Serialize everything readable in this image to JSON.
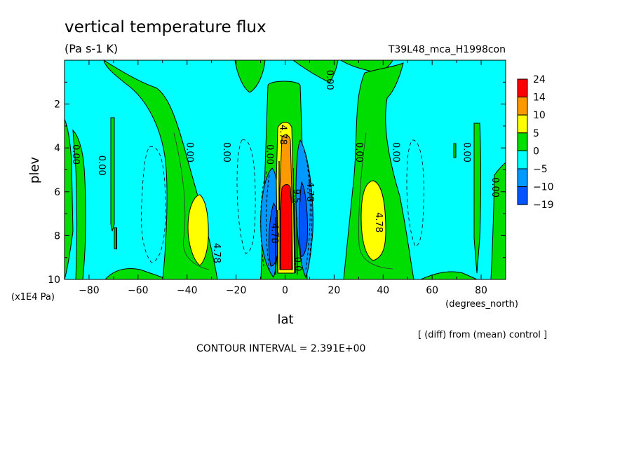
{
  "chart_data": {
    "type": "heatmap",
    "title": "vertical temperature flux",
    "units": "(Pa s-1 K)",
    "experiment": "T39L48_mca_H1998con",
    "xlabel": "lat",
    "xunits": "(degrees_north)",
    "ylabel": "plev",
    "yunits": "(x1E4 Pa)",
    "xlim": [
      -90,
      90
    ],
    "ylim": [
      10,
      0
    ],
    "xticks": [
      -80,
      -60,
      -40,
      -20,
      0,
      20,
      40,
      60,
      80
    ],
    "xtick_labels": [
      "−80",
      "−60",
      "−40",
      "−20",
      "0",
      "20",
      "40",
      "60",
      "80"
    ],
    "yticks": [
      2,
      4,
      6,
      8,
      10
    ],
    "ytick_labels": [
      "2",
      "4",
      "6",
      "8",
      "10"
    ],
    "diff_note": "[ (diff) from (mean) control ]",
    "contour_interval": "CONTOUR INTERVAL = 2.391E+00",
    "colorbar": {
      "levels": [
        "24",
        "14",
        "10",
        "5",
        "0",
        "−5",
        "−10",
        "−19"
      ],
      "colors": [
        "#ff0000",
        "#ff9900",
        "#ffff00",
        "#00dd00",
        "#00ffff",
        "#0099ff",
        "#0055ff"
      ]
    },
    "contour_labels": [
      {
        "text": "0.00",
        "lat": -86.5,
        "plev": 4.3
      },
      {
        "text": "0.00",
        "lat": -76,
        "plev": 4.8
      },
      {
        "text": "0.00",
        "lat": -40,
        "plev": 4.2
      },
      {
        "text": "0.00",
        "lat": -25,
        "plev": 4.2
      },
      {
        "text": "0.00",
        "lat": -7.5,
        "plev": 4.3
      },
      {
        "text": "4.78",
        "lat": -2,
        "plev": 3.4
      },
      {
        "text": "9.5",
        "lat": 3.5,
        "plev": 6.2
      },
      {
        "text": "4.78",
        "lat": 9,
        "plev": 6.0
      },
      {
        "text": "4.78",
        "lat": -5.5,
        "plev": 7.9
      },
      {
        "text": "0.0",
        "lat": 4,
        "plev": 9.3
      },
      {
        "text": "0.00",
        "lat": 29,
        "plev": 4.2
      },
      {
        "text": "0.00",
        "lat": 44,
        "plev": 4.2
      },
      {
        "text": "4.78",
        "lat": 37,
        "plev": 7.4
      },
      {
        "text": "4.78",
        "lat": -29,
        "plev": 8.8
      },
      {
        "text": "0.00",
        "lat": 73,
        "plev": 4.2
      },
      {
        "text": "0.00",
        "lat": 84.5,
        "plev": 5.8
      },
      {
        "text": "0.00",
        "lat": 17,
        "plev": 0.9
      }
    ]
  }
}
